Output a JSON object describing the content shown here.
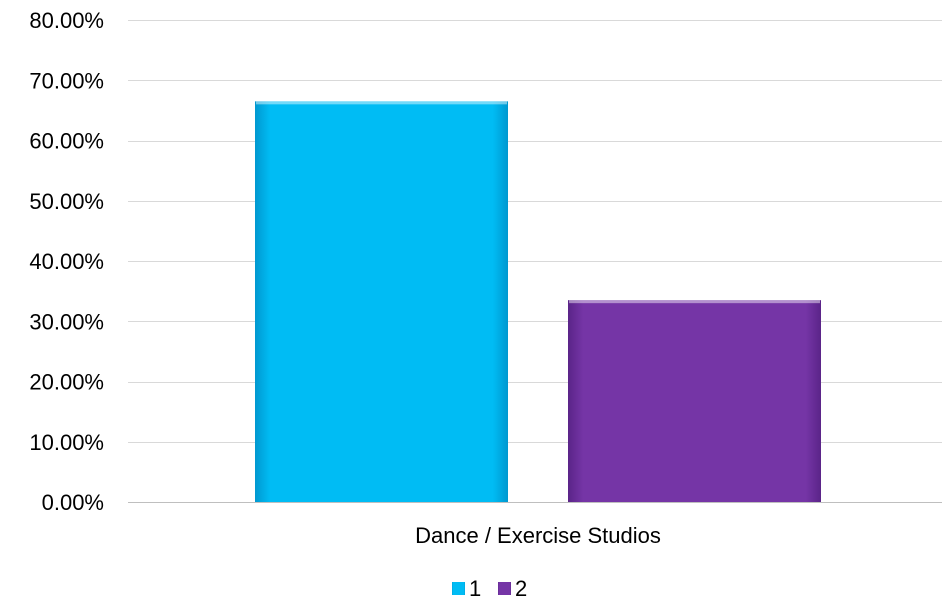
{
  "chart_data": {
    "type": "bar",
    "title": "",
    "xlabel": "",
    "ylabel": "",
    "categories": [
      "Dance / Exercise Studios"
    ],
    "series": [
      {
        "name": "1",
        "values": [
          66.5
        ],
        "color": "#00b8f0"
      },
      {
        "name": "2",
        "values": [
          33.5
        ],
        "color": "#7030a0"
      }
    ],
    "ylim": [
      0,
      80
    ],
    "y_ticks": [
      0,
      10,
      20,
      30,
      40,
      50,
      60,
      70,
      80
    ],
    "y_tick_format": "percent_2dp",
    "grid": true,
    "legend_position": "bottom"
  }
}
